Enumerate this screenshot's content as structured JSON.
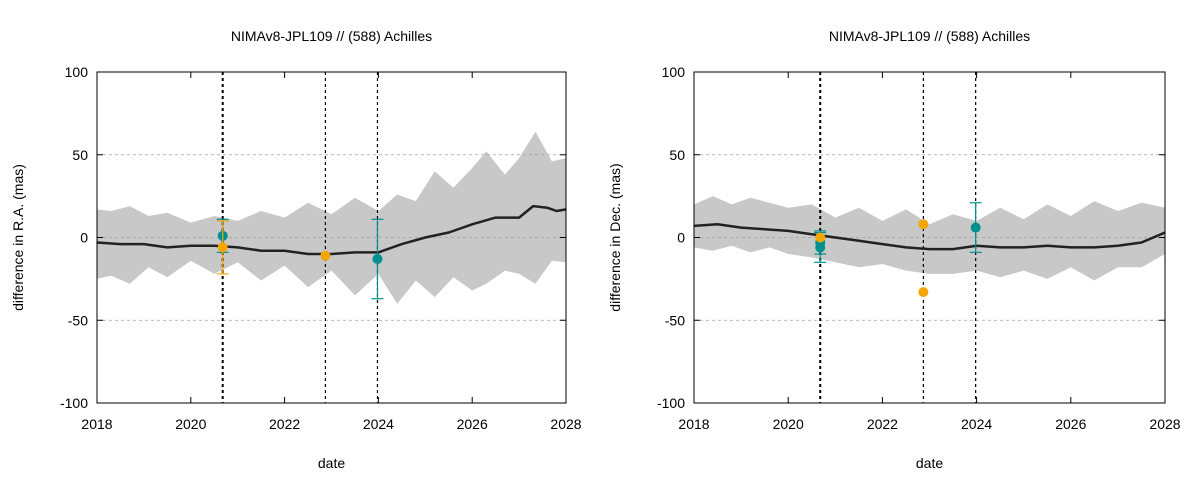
{
  "chart_data": [
    {
      "type": "line",
      "title": "NIMAv8-JPL109 // (588) Achilles",
      "xlabel": "date",
      "ylabel": "difference in R.A. (mas)",
      "xlim": [
        2018,
        2028
      ],
      "ylim": [
        -100,
        100
      ],
      "x_ticks": [
        "2018",
        "2020",
        "2022",
        "2024",
        "2026",
        "2028"
      ],
      "y_ticks": [
        "-100",
        "-50",
        "0",
        "50",
        "100"
      ],
      "grid": "y",
      "legend": "none",
      "vertical_markers": [
        2020.68,
        2022.87,
        2023.98
      ],
      "colors": {
        "band": "#c8c8c8",
        "line": "#222222",
        "teal": "#009090",
        "orange": "#f5a500",
        "marker_line": "#000000"
      },
      "series": [
        {
          "kind": "band",
          "x": [
            2018.0,
            2018.3,
            2018.7,
            2019.1,
            2019.5,
            2020.0,
            2020.5,
            2021.0,
            2021.5,
            2022.0,
            2022.5,
            2023.0,
            2023.5,
            2024.0,
            2024.4,
            2024.8,
            2025.2,
            2025.6,
            2026.0,
            2026.3,
            2026.7,
            2027.0,
            2027.35,
            2027.7,
            2028.0
          ],
          "upper": [
            17,
            16,
            19,
            13,
            15,
            9,
            13,
            10,
            16,
            12,
            21,
            14,
            24,
            16,
            26,
            22,
            40,
            30,
            42,
            52,
            38,
            48,
            64,
            46,
            48
          ],
          "lower": [
            -25,
            -23,
            -28,
            -18,
            -24,
            -14,
            -22,
            -15,
            -26,
            -17,
            -30,
            -20,
            -35,
            -22,
            -40,
            -26,
            -36,
            -24,
            -32,
            -28,
            -20,
            -22,
            -28,
            -14,
            -15
          ]
        },
        {
          "kind": "line",
          "x": [
            2018.0,
            2018.5,
            2019.0,
            2019.5,
            2020.0,
            2020.5,
            2021.0,
            2021.5,
            2022.0,
            2022.5,
            2023.0,
            2023.5,
            2024.0,
            2024.5,
            2025.0,
            2025.5,
            2026.0,
            2026.5,
            2027.0,
            2027.3,
            2027.6,
            2027.8,
            2028.0
          ],
          "y": [
            -3,
            -4,
            -4,
            -6,
            -5,
            -5,
            -6,
            -8,
            -8,
            -10,
            -10,
            -9,
            -9,
            -4,
            0,
            3,
            8,
            12,
            12,
            19,
            18,
            16,
            17
          ]
        },
        {
          "kind": "points",
          "color": "teal",
          "x": [
            2020.68,
            2023.98
          ],
          "y": [
            1,
            -13
          ],
          "err": [
            10,
            24
          ]
        },
        {
          "kind": "points",
          "color": "orange",
          "x": [
            2020.68,
            2022.87
          ],
          "y": [
            -6,
            -11
          ],
          "err": [
            16,
            0
          ]
        }
      ]
    },
    {
      "type": "line",
      "title": "NIMAv8-JPL109 // (588) Achilles",
      "xlabel": "date",
      "ylabel": "difference in Dec. (mas)",
      "xlim": [
        2018,
        2028
      ],
      "ylim": [
        -100,
        100
      ],
      "x_ticks": [
        "2018",
        "2020",
        "2022",
        "2024",
        "2026",
        "2028"
      ],
      "y_ticks": [
        "-100",
        "-50",
        "0",
        "50",
        "100"
      ],
      "grid": "y",
      "legend": "none",
      "vertical_markers": [
        2020.68,
        2022.87,
        2023.98
      ],
      "colors": {
        "band": "#c8c8c8",
        "line": "#222222",
        "teal": "#009090",
        "orange": "#f5a500",
        "marker_line": "#000000"
      },
      "series": [
        {
          "kind": "band",
          "x": [
            2018.0,
            2018.4,
            2018.8,
            2019.2,
            2019.6,
            2020.0,
            2020.5,
            2021.0,
            2021.5,
            2022.0,
            2022.5,
            2023.0,
            2023.5,
            2024.0,
            2024.5,
            2025.0,
            2025.5,
            2026.0,
            2026.5,
            2027.0,
            2027.5,
            2028.0
          ],
          "upper": [
            20,
            25,
            20,
            24,
            21,
            18,
            20,
            12,
            18,
            10,
            17,
            8,
            14,
            10,
            18,
            11,
            20,
            13,
            22,
            16,
            21,
            18
          ],
          "lower": [
            -6,
            -8,
            -5,
            -9,
            -6,
            -10,
            -12,
            -15,
            -18,
            -16,
            -20,
            -22,
            -22,
            -20,
            -24,
            -20,
            -25,
            -18,
            -26,
            -18,
            -18,
            -10
          ]
        },
        {
          "kind": "line",
          "x": [
            2018.0,
            2018.5,
            2019.0,
            2019.5,
            2020.0,
            2020.5,
            2021.0,
            2021.5,
            2022.0,
            2022.5,
            2023.0,
            2023.5,
            2024.0,
            2024.5,
            2025.0,
            2025.5,
            2026.0,
            2026.5,
            2027.0,
            2027.5,
            2028.0
          ],
          "y": [
            7,
            8,
            6,
            5,
            4,
            2,
            0,
            -2,
            -4,
            -6,
            -7,
            -7,
            -5,
            -6,
            -6,
            -5,
            -6,
            -6,
            -5,
            -3,
            3
          ]
        },
        {
          "kind": "points",
          "color": "teal",
          "x": [
            2020.68,
            2020.68,
            2023.98
          ],
          "y": [
            -3,
            -6,
            6
          ],
          "err": [
            7,
            9,
            15
          ]
        },
        {
          "kind": "points",
          "color": "orange",
          "x": [
            2020.68,
            2022.87,
            2022.87
          ],
          "y": [
            0,
            8,
            -33
          ],
          "err": [
            0,
            0,
            0
          ]
        }
      ]
    }
  ]
}
